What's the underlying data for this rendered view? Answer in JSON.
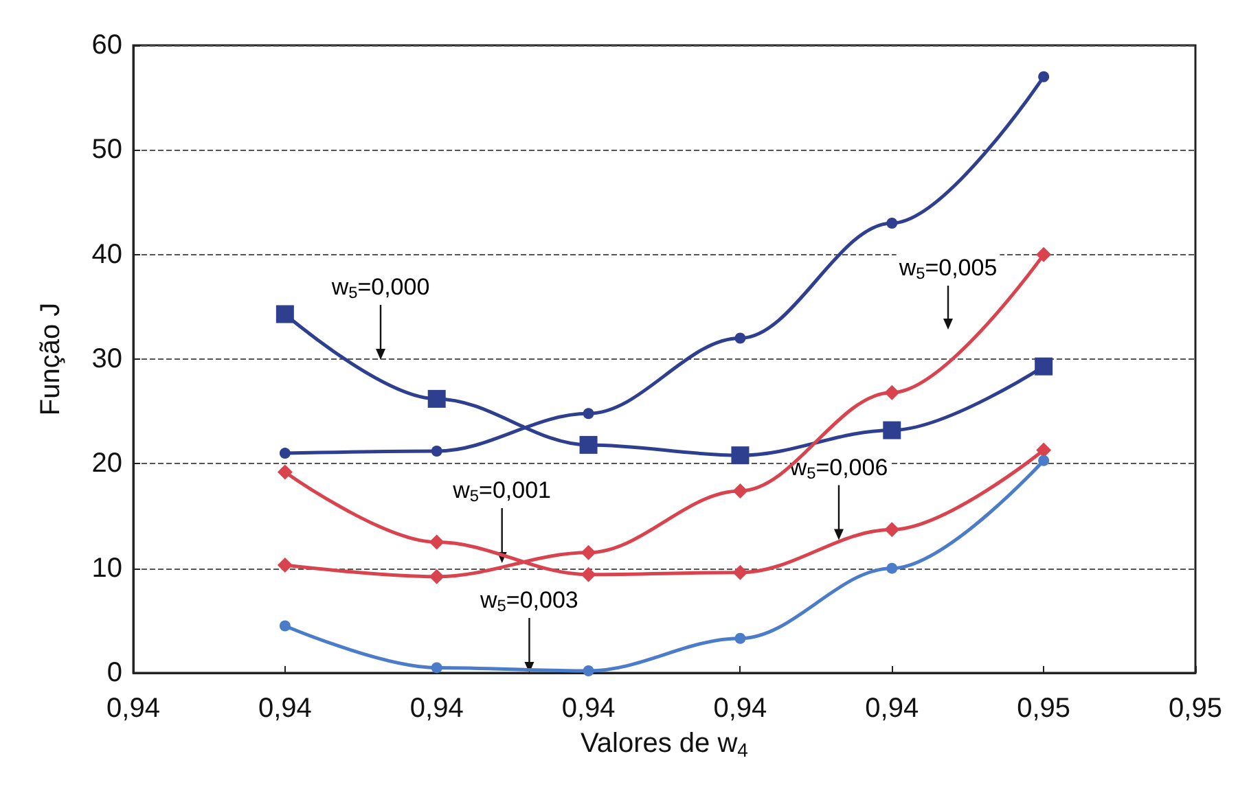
{
  "chart_data": {
    "type": "line",
    "xlabel": "Valores de w$_{4}$",
    "ylabel": "Função J",
    "x": [
      0.94,
      0.941,
      0.942,
      0.943,
      0.944,
      0.945
    ],
    "xlim": [
      0.939,
      0.946
    ],
    "xticks": [
      {
        "value": 0.939,
        "label": "0,94"
      },
      {
        "value": 0.94,
        "label": "0,94"
      },
      {
        "value": 0.941,
        "label": "0,94"
      },
      {
        "value": 0.942,
        "label": "0,94"
      },
      {
        "value": 0.943,
        "label": "0,94"
      },
      {
        "value": 0.944,
        "label": "0,94"
      },
      {
        "value": 0.945,
        "label": "0,95"
      },
      {
        "value": 0.946,
        "label": "0,95"
      }
    ],
    "ylim": [
      0,
      60
    ],
    "yticks": [
      0,
      10,
      20,
      30,
      40,
      50,
      60
    ],
    "grid": "y",
    "series": [
      {
        "color": "#2e3f8f",
        "marker": "circle",
        "values": [
          21,
          21.2,
          24.8,
          32,
          43,
          57
        ]
      },
      {
        "color": "#2e3f8f",
        "marker": "square",
        "values": [
          34.3,
          26.2,
          21.8,
          20.8,
          23.2,
          29.3
        ]
      },
      {
        "color": "#d9434e",
        "marker": "diamond",
        "values": [
          19.2,
          12.5,
          9.4,
          9.6,
          13.7,
          21.3
        ]
      },
      {
        "color": "#d9434e",
        "marker": "diamond",
        "values": [
          10.3,
          9.2,
          11.5,
          17.4,
          26.8,
          40
        ]
      },
      {
        "color": "#4a7cc9",
        "marker": "circle",
        "values": [
          4.5,
          0.5,
          0.2,
          3.3,
          10,
          20.3
        ]
      }
    ],
    "annotations": [
      "w$_{5}$=0,000",
      {
        "text": "w$_{5}$=0,001",
        "x": 0.94143,
        "y": 10.5
      },
      {
        "text": "w$_{5}$=0,003",
        "x": 0.94161,
        "y": 0
      },
      "w$_{5}$=0,005",
      {
        "text": "w$_{5}$=0,006",
        "x": 0.94365,
        "y": 12.7
      }
    ]
  }
}
